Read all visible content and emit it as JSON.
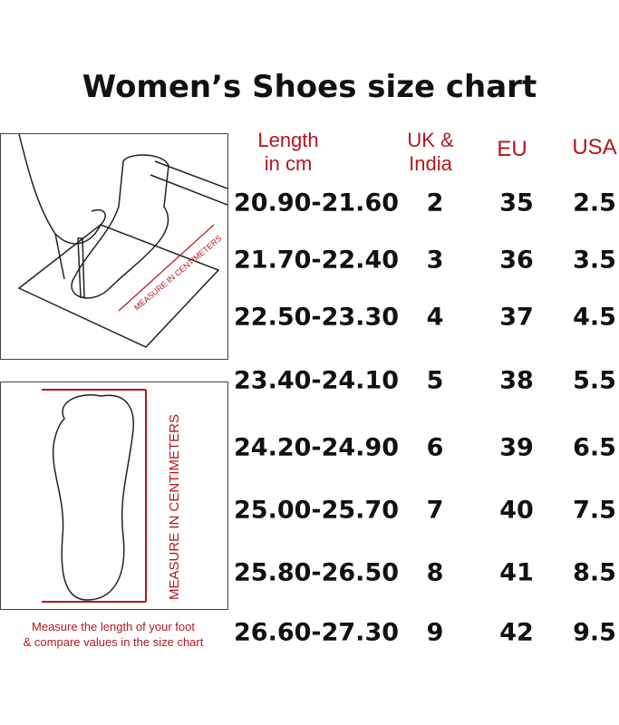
{
  "title": "Women’s Shoes size chart",
  "headers": {
    "length": [
      "Length",
      "in cm"
    ],
    "uk": [
      "UK &",
      "India"
    ],
    "eu": "EU",
    "usa": "USA"
  },
  "rows": [
    {
      "length": "20.90-21.60",
      "uk": "2",
      "eu": "35",
      "usa": "2.5"
    },
    {
      "length": "21.70-22.40",
      "uk": "3",
      "eu": "36",
      "usa": "3.5"
    },
    {
      "length": "22.50-23.30",
      "uk": "4",
      "eu": "37",
      "usa": "4.5"
    },
    {
      "length": "23.40-24.10",
      "uk": "5",
      "eu": "38",
      "usa": "5.5"
    },
    {
      "length": "24.20-24.90",
      "uk": "6",
      "eu": "39",
      "usa": "6.5"
    },
    {
      "length": "25.00-25.70",
      "uk": "7",
      "eu": "40",
      "usa": "7.5"
    },
    {
      "length": "25.80-26.50",
      "uk": "8",
      "eu": "41",
      "usa": "8.5"
    },
    {
      "length": "26.60-27.30",
      "uk": "9",
      "eu": "42",
      "usa": "9.5"
    }
  ],
  "illustrations": {
    "ruler_label_top": "MEASURE IN CENTIMETERS",
    "ruler_label_side": "MEASURE IN CENTIMETERS"
  },
  "note": [
    "Measure the length of your foot",
    "& compare values in the size chart"
  ],
  "colors": {
    "accent": "#b3161c",
    "text": "#111111"
  }
}
